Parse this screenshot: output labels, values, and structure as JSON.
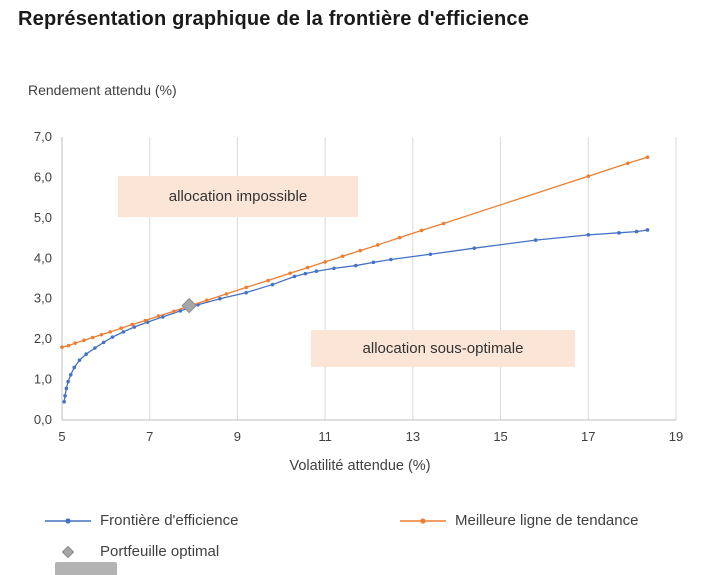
{
  "title": "Représentation graphique de la frontière d'efficience",
  "chart_data": {
    "type": "line",
    "title": "Représentation graphique de la frontière d'efficience",
    "xlabel": "Volatilité attendue (%)",
    "ylabel": "Rendement attendu (%)",
    "xlim": [
      5,
      19
    ],
    "ylim": [
      0,
      7
    ],
    "grid": "vertical-only",
    "legend_position": "bottom",
    "x_ticks": {
      "values": [
        5,
        7,
        9,
        11,
        13,
        15,
        17,
        19
      ],
      "labels": [
        "5",
        "7",
        "9",
        "11",
        "13",
        "15",
        "17",
        "19"
      ]
    },
    "y_ticks": {
      "values": [
        0,
        1,
        2,
        3,
        4,
        5,
        6,
        7
      ],
      "labels": [
        "0,0",
        "1,0",
        "2,0",
        "3,0",
        "4,0",
        "5,0",
        "6,0",
        "7,0"
      ]
    },
    "series": [
      {
        "name": "Frontière d'efficience",
        "color": "#4472c4",
        "type": "line-marker",
        "points": [
          [
            5.05,
            0.45
          ],
          [
            5.07,
            0.6
          ],
          [
            5.1,
            0.78
          ],
          [
            5.14,
            0.95
          ],
          [
            5.2,
            1.12
          ],
          [
            5.28,
            1.3
          ],
          [
            5.4,
            1.48
          ],
          [
            5.55,
            1.63
          ],
          [
            5.75,
            1.78
          ],
          [
            5.95,
            1.92
          ],
          [
            6.15,
            2.05
          ],
          [
            6.4,
            2.18
          ],
          [
            6.65,
            2.3
          ],
          [
            6.95,
            2.42
          ],
          [
            7.3,
            2.55
          ],
          [
            7.7,
            2.7
          ],
          [
            8.1,
            2.85
          ],
          [
            8.6,
            3.0
          ],
          [
            9.2,
            3.15
          ],
          [
            9.8,
            3.35
          ],
          [
            10.3,
            3.55
          ],
          [
            10.55,
            3.62
          ],
          [
            10.8,
            3.68
          ],
          [
            11.2,
            3.75
          ],
          [
            11.7,
            3.82
          ],
          [
            12.1,
            3.9
          ],
          [
            12.5,
            3.97
          ],
          [
            13.4,
            4.1
          ],
          [
            14.4,
            4.25
          ],
          [
            15.8,
            4.45
          ],
          [
            17.0,
            4.58
          ],
          [
            17.7,
            4.63
          ],
          [
            18.1,
            4.66
          ],
          [
            18.35,
            4.7
          ]
        ]
      },
      {
        "name": "Meilleure ligne de tendance",
        "color": "#ed7d31",
        "type": "line-marker",
        "points": [
          [
            5.0,
            1.8
          ],
          [
            5.15,
            1.84
          ],
          [
            5.3,
            1.9
          ],
          [
            5.5,
            1.97
          ],
          [
            5.7,
            2.04
          ],
          [
            5.9,
            2.11
          ],
          [
            6.1,
            2.18
          ],
          [
            6.35,
            2.27
          ],
          [
            6.6,
            2.36
          ],
          [
            6.9,
            2.46
          ],
          [
            7.2,
            2.57
          ],
          [
            7.55,
            2.69
          ],
          [
            7.9,
            2.82
          ],
          [
            8.3,
            2.96
          ],
          [
            8.75,
            3.12
          ],
          [
            9.2,
            3.28
          ],
          [
            9.7,
            3.45
          ],
          [
            10.2,
            3.63
          ],
          [
            10.6,
            3.77
          ],
          [
            11.0,
            3.91
          ],
          [
            11.4,
            4.05
          ],
          [
            11.8,
            4.19
          ],
          [
            12.2,
            4.33
          ],
          [
            12.7,
            4.51
          ],
          [
            13.2,
            4.69
          ],
          [
            13.7,
            4.86
          ],
          [
            17.0,
            6.03
          ],
          [
            17.9,
            6.35
          ],
          [
            18.35,
            6.5
          ]
        ]
      },
      {
        "name": "Portfeuille optimal",
        "color": "#a6a6a6",
        "type": "scatter-diamond",
        "points": [
          [
            7.9,
            2.83
          ]
        ]
      }
    ],
    "annotations": [
      {
        "text": "allocation impossible",
        "bg": "#fbe5d6"
      },
      {
        "text": "allocation sous-optimale",
        "bg": "#fbe5d6"
      }
    ],
    "colors": {
      "gridline": "#d9d9d9",
      "axis_line": "#bfbfbf",
      "tick_text": "#404040"
    }
  }
}
